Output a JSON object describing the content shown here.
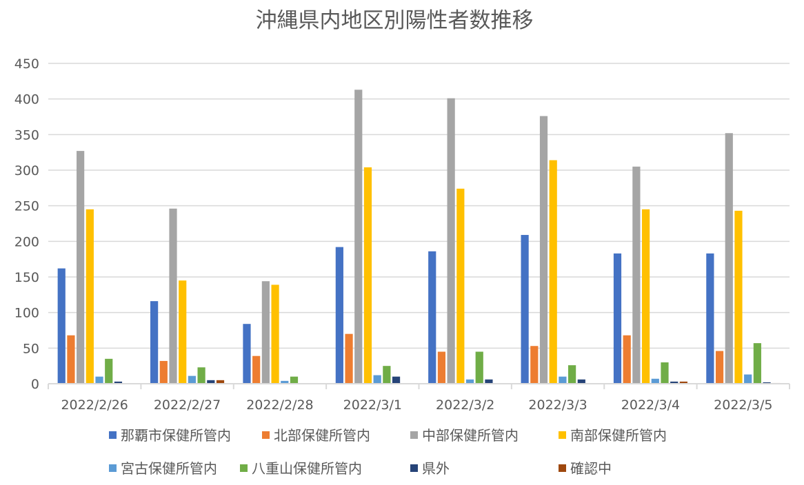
{
  "chart_data": {
    "type": "bar",
    "title": "沖縄県内地区別陽性者数推移",
    "xlabel": "",
    "ylabel": "",
    "ylim": [
      0,
      450
    ],
    "yticks": [
      0,
      50,
      100,
      150,
      200,
      250,
      300,
      350,
      400,
      450
    ],
    "grid": true,
    "legend_position": "bottom",
    "categories": [
      "2022/2/26",
      "2022/2/27",
      "2022/2/28",
      "2022/3/1",
      "2022/3/2",
      "2022/3/3",
      "2022/3/4",
      "2022/3/5"
    ],
    "series": [
      {
        "name": "那覇市保健所管内",
        "color": "#4472C4",
        "values": [
          162,
          116,
          84,
          192,
          186,
          209,
          183,
          183
        ]
      },
      {
        "name": "北部保健所管内",
        "color": "#ED7D31",
        "values": [
          68,
          32,
          39,
          70,
          45,
          53,
          68,
          46
        ]
      },
      {
        "name": "中部保健所管内",
        "color": "#A5A5A5",
        "values": [
          327,
          246,
          144,
          413,
          401,
          376,
          305,
          352
        ]
      },
      {
        "name": "南部保健所管内",
        "color": "#FFC000",
        "values": [
          245,
          145,
          139,
          304,
          274,
          314,
          245,
          243
        ]
      },
      {
        "name": "宮古保健所管内",
        "color": "#5B9BD5",
        "values": [
          10,
          11,
          4,
          12,
          6,
          10,
          7,
          13
        ]
      },
      {
        "name": "八重山保健所管内",
        "color": "#70AD47",
        "values": [
          35,
          23,
          10,
          25,
          45,
          26,
          30,
          57
        ]
      },
      {
        "name": "県外",
        "color": "#264478",
        "values": [
          3,
          5,
          0,
          10,
          6,
          6,
          3,
          2
        ]
      },
      {
        "name": "確認中",
        "color": "#9E480E",
        "values": [
          0,
          5,
          0,
          0,
          0,
          0,
          3,
          1
        ]
      }
    ]
  }
}
